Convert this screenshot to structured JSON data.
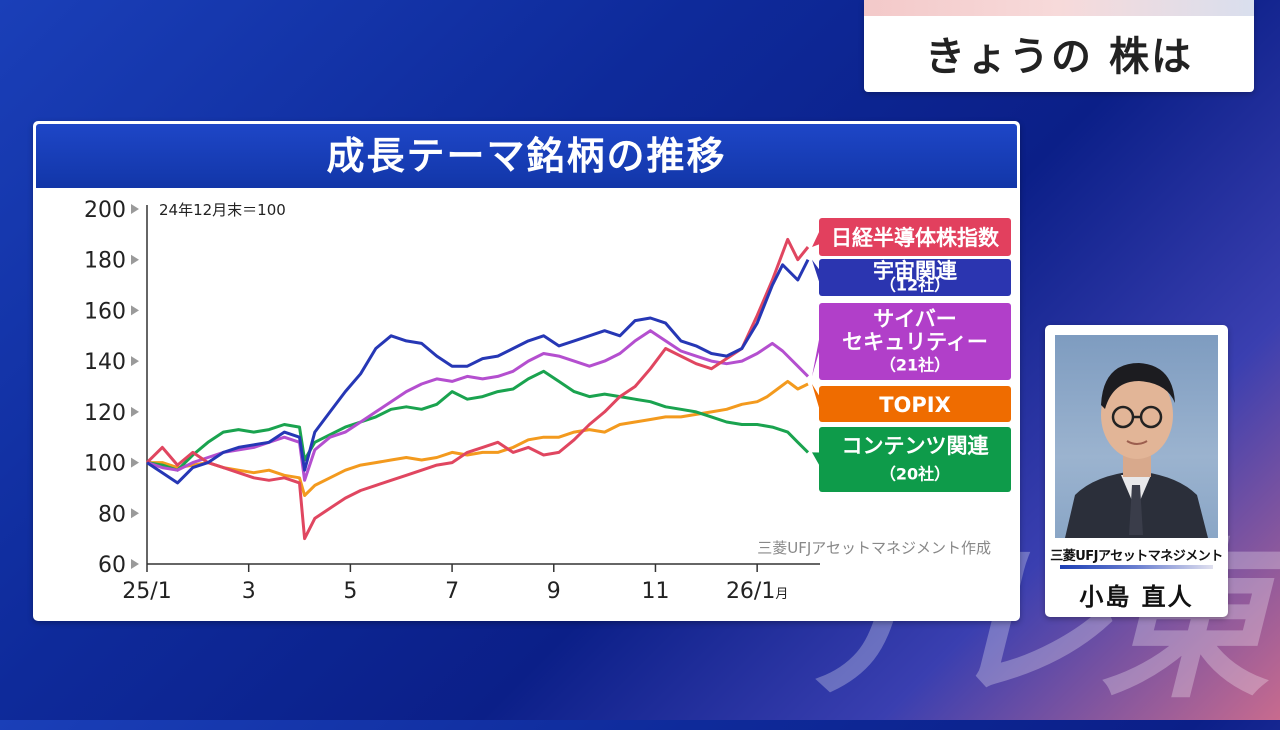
{
  "headline": "きょうの 株は",
  "panel_title": "成長テーマ銘柄の推移",
  "watermark": "テレ東",
  "profile": {
    "company": "三菱UFJアセットマネジメント",
    "name": "小島 直人"
  },
  "chart_data": {
    "type": "line",
    "title": "成長テーマ銘柄の推移",
    "subtitle": "24年12月末＝100",
    "source": "三菱UFJアセットマネジメント作成",
    "ylim": [
      60,
      200
    ],
    "yticks": [
      60,
      80,
      100,
      120,
      140,
      160,
      180,
      200
    ],
    "xlim": [
      0,
      13
    ],
    "xticks": [
      {
        "x": 0,
        "label": "25/1"
      },
      {
        "x": 2,
        "label": "3"
      },
      {
        "x": 4,
        "label": "5"
      },
      {
        "x": 6,
        "label": "7"
      },
      {
        "x": 8,
        "label": "9"
      },
      {
        "x": 10,
        "label": "11"
      },
      {
        "x": 12,
        "label": "26/1",
        "unit": "月"
      }
    ],
    "grid": false,
    "legend": "right",
    "series": [
      {
        "name": "TOPIX",
        "color": "#f39a1e",
        "legend_color": "#ef6c00",
        "label_lines": [
          "TOPIX"
        ],
        "points": [
          [
            0,
            100
          ],
          [
            0.3,
            100
          ],
          [
            0.6,
            98
          ],
          [
            0.9,
            99
          ],
          [
            1.2,
            100
          ],
          [
            1.5,
            98
          ],
          [
            1.8,
            97
          ],
          [
            2.1,
            96
          ],
          [
            2.4,
            97
          ],
          [
            2.7,
            95
          ],
          [
            3.0,
            94
          ],
          [
            3.1,
            87
          ],
          [
            3.3,
            91
          ],
          [
            3.6,
            94
          ],
          [
            3.9,
            97
          ],
          [
            4.2,
            99
          ],
          [
            4.5,
            100
          ],
          [
            4.8,
            101
          ],
          [
            5.1,
            102
          ],
          [
            5.4,
            101
          ],
          [
            5.7,
            102
          ],
          [
            6.0,
            104
          ],
          [
            6.3,
            103
          ],
          [
            6.6,
            104
          ],
          [
            6.9,
            104
          ],
          [
            7.2,
            106
          ],
          [
            7.5,
            109
          ],
          [
            7.8,
            110
          ],
          [
            8.1,
            110
          ],
          [
            8.4,
            112
          ],
          [
            8.7,
            113
          ],
          [
            9.0,
            112
          ],
          [
            9.3,
            115
          ],
          [
            9.6,
            116
          ],
          [
            9.9,
            117
          ],
          [
            10.2,
            118
          ],
          [
            10.5,
            118
          ],
          [
            10.8,
            119
          ],
          [
            11.1,
            120
          ],
          [
            11.4,
            121
          ],
          [
            11.7,
            123
          ],
          [
            12.0,
            124
          ],
          [
            12.2,
            126
          ],
          [
            12.4,
            129
          ],
          [
            12.6,
            132
          ],
          [
            12.8,
            129
          ],
          [
            13.0,
            131
          ]
        ]
      },
      {
        "name": "コンテンツ関連（20社）",
        "color": "#1aa34f",
        "legend_color": "#0e9b4a",
        "label_lines": [
          "コンテンツ関連",
          "（20社）"
        ],
        "points": [
          [
            0,
            100
          ],
          [
            0.3,
            99
          ],
          [
            0.6,
            97
          ],
          [
            0.9,
            103
          ],
          [
            1.2,
            108
          ],
          [
            1.5,
            112
          ],
          [
            1.8,
            113
          ],
          [
            2.1,
            112
          ],
          [
            2.4,
            113
          ],
          [
            2.7,
            115
          ],
          [
            3.0,
            114
          ],
          [
            3.1,
            101
          ],
          [
            3.3,
            108
          ],
          [
            3.6,
            111
          ],
          [
            3.9,
            114
          ],
          [
            4.2,
            116
          ],
          [
            4.5,
            118
          ],
          [
            4.8,
            121
          ],
          [
            5.1,
            122
          ],
          [
            5.4,
            121
          ],
          [
            5.7,
            123
          ],
          [
            6.0,
            128
          ],
          [
            6.3,
            125
          ],
          [
            6.6,
            126
          ],
          [
            6.9,
            128
          ],
          [
            7.2,
            129
          ],
          [
            7.5,
            133
          ],
          [
            7.8,
            136
          ],
          [
            8.1,
            132
          ],
          [
            8.4,
            128
          ],
          [
            8.7,
            126
          ],
          [
            9.0,
            127
          ],
          [
            9.3,
            126
          ],
          [
            9.6,
            125
          ],
          [
            9.9,
            124
          ],
          [
            10.2,
            122
          ],
          [
            10.5,
            121
          ],
          [
            10.8,
            120
          ],
          [
            11.1,
            118
          ],
          [
            11.4,
            116
          ],
          [
            11.7,
            115
          ],
          [
            12.0,
            115
          ],
          [
            12.3,
            114
          ],
          [
            12.6,
            112
          ],
          [
            12.8,
            108
          ],
          [
            13.0,
            104
          ]
        ]
      },
      {
        "name": "サイバーセキュリティー（21社）",
        "color": "#b44fcf",
        "legend_color": "#b13fc9",
        "label_lines": [
          "サイバー",
          "セキュリティー",
          "（21社）"
        ],
        "points": [
          [
            0,
            100
          ],
          [
            0.3,
            98
          ],
          [
            0.6,
            97
          ],
          [
            0.9,
            100
          ],
          [
            1.2,
            102
          ],
          [
            1.5,
            104
          ],
          [
            1.8,
            105
          ],
          [
            2.1,
            106
          ],
          [
            2.4,
            108
          ],
          [
            2.7,
            110
          ],
          [
            3.0,
            108
          ],
          [
            3.1,
            93
          ],
          [
            3.3,
            105
          ],
          [
            3.6,
            110
          ],
          [
            3.9,
            112
          ],
          [
            4.2,
            116
          ],
          [
            4.5,
            120
          ],
          [
            4.8,
            124
          ],
          [
            5.1,
            128
          ],
          [
            5.4,
            131
          ],
          [
            5.7,
            133
          ],
          [
            6.0,
            132
          ],
          [
            6.3,
            134
          ],
          [
            6.6,
            133
          ],
          [
            6.9,
            134
          ],
          [
            7.2,
            136
          ],
          [
            7.5,
            140
          ],
          [
            7.8,
            143
          ],
          [
            8.1,
            142
          ],
          [
            8.4,
            140
          ],
          [
            8.7,
            138
          ],
          [
            9.0,
            140
          ],
          [
            9.3,
            143
          ],
          [
            9.6,
            148
          ],
          [
            9.9,
            152
          ],
          [
            10.2,
            148
          ],
          [
            10.5,
            144
          ],
          [
            10.8,
            142
          ],
          [
            11.1,
            140
          ],
          [
            11.4,
            139
          ],
          [
            11.7,
            140
          ],
          [
            12.0,
            143
          ],
          [
            12.3,
            147
          ],
          [
            12.5,
            144
          ],
          [
            12.8,
            138
          ],
          [
            13.0,
            134
          ]
        ]
      },
      {
        "name": "日経半導体株指数",
        "color": "#e04660",
        "legend_color": "#e2405e",
        "label_lines": [
          "日経半導体株指数"
        ],
        "points": [
          [
            0,
            100
          ],
          [
            0.3,
            106
          ],
          [
            0.6,
            99
          ],
          [
            0.9,
            104
          ],
          [
            1.2,
            100
          ],
          [
            1.5,
            98
          ],
          [
            1.8,
            96
          ],
          [
            2.1,
            94
          ],
          [
            2.4,
            93
          ],
          [
            2.7,
            94
          ],
          [
            3.0,
            92
          ],
          [
            3.1,
            70
          ],
          [
            3.3,
            78
          ],
          [
            3.6,
            82
          ],
          [
            3.9,
            86
          ],
          [
            4.2,
            89
          ],
          [
            4.5,
            91
          ],
          [
            4.8,
            93
          ],
          [
            5.1,
            95
          ],
          [
            5.4,
            97
          ],
          [
            5.7,
            99
          ],
          [
            6.0,
            100
          ],
          [
            6.3,
            104
          ],
          [
            6.6,
            106
          ],
          [
            6.9,
            108
          ],
          [
            7.2,
            104
          ],
          [
            7.5,
            106
          ],
          [
            7.8,
            103
          ],
          [
            8.1,
            104
          ],
          [
            8.4,
            109
          ],
          [
            8.7,
            115
          ],
          [
            9.0,
            120
          ],
          [
            9.3,
            126
          ],
          [
            9.6,
            130
          ],
          [
            9.9,
            137
          ],
          [
            10.2,
            145
          ],
          [
            10.5,
            142
          ],
          [
            10.8,
            139
          ],
          [
            11.1,
            137
          ],
          [
            11.4,
            141
          ],
          [
            11.7,
            145
          ],
          [
            12.0,
            158
          ],
          [
            12.3,
            172
          ],
          [
            12.6,
            188
          ],
          [
            12.8,
            180
          ],
          [
            13.0,
            185
          ]
        ]
      },
      {
        "name": "宇宙関連（12社）",
        "color": "#2637b5",
        "legend_color": "#2b35b0",
        "label_lines": [
          "宇宙関連",
          "（12社）"
        ],
        "points": [
          [
            0,
            100
          ],
          [
            0.3,
            96
          ],
          [
            0.6,
            92
          ],
          [
            0.9,
            98
          ],
          [
            1.2,
            100
          ],
          [
            1.5,
            104
          ],
          [
            1.8,
            106
          ],
          [
            2.1,
            107
          ],
          [
            2.4,
            108
          ],
          [
            2.7,
            112
          ],
          [
            3.0,
            110
          ],
          [
            3.1,
            97
          ],
          [
            3.3,
            112
          ],
          [
            3.6,
            120
          ],
          [
            3.9,
            128
          ],
          [
            4.2,
            135
          ],
          [
            4.5,
            145
          ],
          [
            4.8,
            150
          ],
          [
            5.1,
            148
          ],
          [
            5.4,
            147
          ],
          [
            5.7,
            142
          ],
          [
            6.0,
            138
          ],
          [
            6.3,
            138
          ],
          [
            6.6,
            141
          ],
          [
            6.9,
            142
          ],
          [
            7.2,
            145
          ],
          [
            7.5,
            148
          ],
          [
            7.8,
            150
          ],
          [
            8.1,
            146
          ],
          [
            8.4,
            148
          ],
          [
            8.7,
            150
          ],
          [
            9.0,
            152
          ],
          [
            9.3,
            150
          ],
          [
            9.6,
            156
          ],
          [
            9.9,
            157
          ],
          [
            10.2,
            155
          ],
          [
            10.5,
            148
          ],
          [
            10.8,
            146
          ],
          [
            11.1,
            143
          ],
          [
            11.4,
            142
          ],
          [
            11.7,
            145
          ],
          [
            12.0,
            155
          ],
          [
            12.3,
            170
          ],
          [
            12.5,
            178
          ],
          [
            12.8,
            172
          ],
          [
            13.0,
            180
          ]
        ]
      }
    ]
  }
}
